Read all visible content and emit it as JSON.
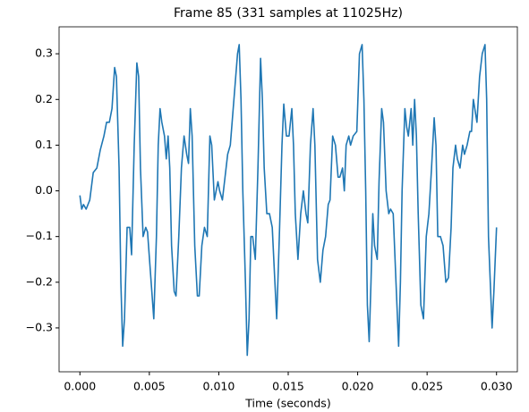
{
  "chart_data": {
    "type": "line",
    "title": "Frame 85 (331 samples at 11025Hz)",
    "xlabel": "Time (seconds)",
    "color": "#1f77b4",
    "grid": false,
    "xlim": [
      -0.0015,
      0.0315
    ],
    "ylim": [
      -0.396,
      0.359
    ],
    "xticks": [
      {
        "value": 0,
        "label": "0.000"
      },
      {
        "value": 0.005,
        "label": "0.005"
      },
      {
        "value": 0.01,
        "label": "0.010"
      },
      {
        "value": 0.015,
        "label": "0.015"
      },
      {
        "value": 0.02,
        "label": "0.020"
      },
      {
        "value": 0.025,
        "label": "0.025"
      },
      {
        "value": 0.03,
        "label": "0.030"
      }
    ],
    "yticks": [
      {
        "value": -0.3,
        "label": "−0.3"
      },
      {
        "value": -0.2,
        "label": "−0.2"
      },
      {
        "value": -0.1,
        "label": "−0.1"
      },
      {
        "value": 0,
        "label": "0.0"
      },
      0.1,
      0.2,
      0.3
    ],
    "x": [
      0,
      0.00013,
      0.00026,
      0.00045,
      0.00071,
      0.00096,
      0.00122,
      0.00147,
      0.00173,
      0.00192,
      0.00212,
      0.00231,
      0.0025,
      0.00263,
      0.00282,
      0.00295,
      0.00308,
      0.00321,
      0.0034,
      0.00359,
      0.00372,
      0.00391,
      0.0041,
      0.00423,
      0.00436,
      0.00455,
      0.00474,
      0.00487,
      0.00513,
      0.00532,
      0.00551,
      0.00564,
      0.00577,
      0.0059,
      0.00609,
      0.00622,
      0.00635,
      0.00647,
      0.0066,
      0.00679,
      0.00692,
      0.00712,
      0.00731,
      0.0075,
      0.00769,
      0.00782,
      0.00795,
      0.00808,
      0.00827,
      0.00846,
      0.00859,
      0.00878,
      0.00897,
      0.00917,
      0.00936,
      0.00949,
      0.00968,
      0.00981,
      0.00994,
      0.01006,
      0.01026,
      0.01045,
      0.01064,
      0.01083,
      0.01109,
      0.01135,
      0.01147,
      0.0116,
      0.01173,
      0.01192,
      0.01205,
      0.01218,
      0.01231,
      0.01244,
      0.01263,
      0.01282,
      0.01301,
      0.01314,
      0.01327,
      0.01346,
      0.01365,
      0.01385,
      0.01404,
      0.01417,
      0.01436,
      0.01455,
      0.01468,
      0.01487,
      0.01506,
      0.01526,
      0.01538,
      0.01551,
      0.0157,
      0.0159,
      0.01609,
      0.01628,
      0.01641,
      0.0166,
      0.01679,
      0.01692,
      0.01711,
      0.01731,
      0.0175,
      0.01769,
      0.01788,
      0.01801,
      0.0182,
      0.0184,
      0.01859,
      0.01872,
      0.01891,
      0.01904,
      0.01917,
      0.01936,
      0.01949,
      0.01968,
      0.01994,
      0.02013,
      0.02032,
      0.02045,
      0.02058,
      0.0207,
      0.02083,
      0.02096,
      0.02109,
      0.02122,
      0.02141,
      0.02154,
      0.02173,
      0.02186,
      0.02205,
      0.02224,
      0.02237,
      0.02256,
      0.02276,
      0.02295,
      0.02308,
      0.0232,
      0.0234,
      0.02353,
      0.02365,
      0.02385,
      0.02397,
      0.0241,
      0.02423,
      0.02436,
      0.02455,
      0.02474,
      0.02494,
      0.02513,
      0.02532,
      0.02551,
      0.02564,
      0.02577,
      0.02596,
      0.02615,
      0.02635,
      0.02654,
      0.02673,
      0.02686,
      0.02705,
      0.02718,
      0.02737,
      0.02756,
      0.02769,
      0.02788,
      0.02808,
      0.0282,
      0.02833,
      0.02859,
      0.02878,
      0.02897,
      0.02917,
      0.02929,
      0.02942,
      0.02955,
      0.02968,
      0.02981,
      0.03
    ],
    "values": [
      -0.01,
      -0.04,
      -0.03,
      -0.04,
      -0.02,
      0.04,
      0.05,
      0.09,
      0.12,
      0.15,
      0.15,
      0.18,
      0.27,
      0.25,
      0.05,
      -0.2,
      -0.34,
      -0.28,
      -0.08,
      -0.08,
      -0.14,
      0.1,
      0.28,
      0.25,
      0.05,
      -0.1,
      -0.08,
      -0.09,
      -0.2,
      -0.28,
      -0.1,
      0.1,
      0.18,
      0.15,
      0.12,
      0.07,
      0.12,
      0.05,
      -0.12,
      -0.22,
      -0.23,
      -0.1,
      0.05,
      0.12,
      0.08,
      0.06,
      0.18,
      0.12,
      -0.12,
      -0.23,
      -0.23,
      -0.12,
      -0.08,
      -0.1,
      0.12,
      0.1,
      -0.02,
      0,
      0.02,
      0,
      -0.02,
      0.03,
      0.08,
      0.1,
      0.2,
      0.3,
      0.32,
      0.2,
      0,
      -0.2,
      -0.36,
      -0.28,
      -0.1,
      -0.1,
      -0.15,
      0.05,
      0.29,
      0.2,
      0.05,
      -0.05,
      -0.05,
      -0.08,
      -0.2,
      -0.28,
      -0.1,
      0.1,
      0.19,
      0.12,
      0.12,
      0.18,
      0.1,
      -0.05,
      -0.15,
      -0.05,
      0,
      -0.05,
      -0.07,
      0.1,
      0.18,
      0.1,
      -0.15,
      -0.2,
      -0.13,
      -0.1,
      -0.03,
      -0.02,
      0.12,
      0.1,
      0.03,
      0.03,
      0.05,
      0,
      0.1,
      0.12,
      0.1,
      0.12,
      0.13,
      0.3,
      0.32,
      0.2,
      0,
      -0.25,
      -0.33,
      -0.2,
      -0.05,
      -0.12,
      -0.15,
      0.02,
      0.18,
      0.15,
      0,
      -0.05,
      -0.04,
      -0.05,
      -0.2,
      -0.34,
      -0.2,
      0,
      0.18,
      0.14,
      0.12,
      0.18,
      0.1,
      0.2,
      0.12,
      -0.05,
      -0.25,
      -0.28,
      -0.1,
      -0.05,
      0.05,
      0.16,
      0.1,
      -0.1,
      -0.1,
      -0.12,
      -0.2,
      -0.19,
      -0.08,
      0.05,
      0.1,
      0.07,
      0.05,
      0.1,
      0.08,
      0.1,
      0.13,
      0.13,
      0.2,
      0.15,
      0.25,
      0.3,
      0.32,
      0.2,
      -0.1,
      -0.2,
      -0.3,
      -0.22,
      -0.08
    ]
  }
}
